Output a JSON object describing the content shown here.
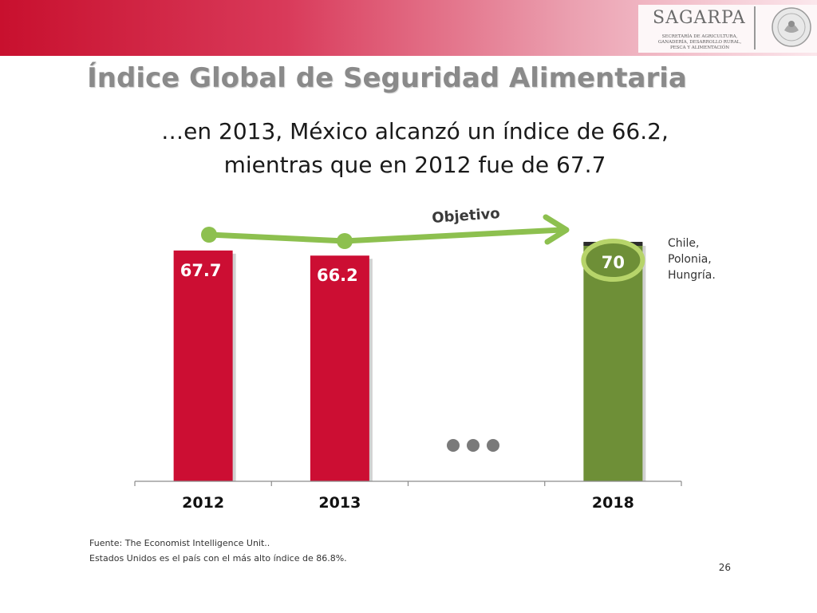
{
  "header": {
    "logo_text": "SAGARPA",
    "logo_subtitle": "SECRETARÍA DE AGRICULTURA, GANADERÍA, DESARROLLO RURAL, PESCA Y ALIMENTACIÓN",
    "seal_icon": "mexico-coat-of-arms-seal-icon"
  },
  "slide": {
    "title": "Índice Global de Seguridad Alimentaria",
    "subtitle_line1": "…en 2013, México alcanzó un índice de 66.2,",
    "subtitle_line2": "mientras que en 2012 fue de 67.7",
    "footnote_source": "Fuente: The Economist Intelligence Unit..",
    "footnote_note": "Estados Unidos es el país con el más alto índice de 86.8%.",
    "page_number": "26"
  },
  "chart_data": {
    "type": "bar",
    "title": "Índice Global de Seguridad Alimentaria",
    "xlabel": "",
    "ylabel": "",
    "categories": [
      "2012",
      "2013",
      "",
      "2018"
    ],
    "values": [
      67.7,
      66.2,
      null,
      70
    ],
    "value_labels": [
      "67.7",
      "66.2",
      "",
      "70"
    ],
    "bar_colors": [
      "#cc0e33",
      "#cc0e33",
      null,
      "#6e8f37"
    ],
    "ylim": [
      0,
      70
    ],
    "grid": false,
    "annotations": {
      "objective_label": "Objetivo",
      "target_countries": [
        "Chile,",
        "Polonia,",
        "Hungría."
      ],
      "gap_marker": "•••"
    },
    "colors": {
      "trend_line": "#8dc04f",
      "ellipsis_dots": "#7a7a7a"
    }
  }
}
